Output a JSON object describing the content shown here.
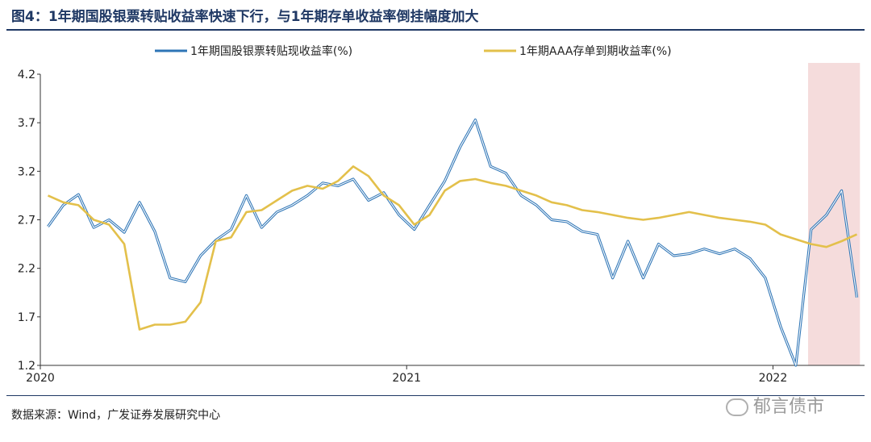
{
  "header": {
    "title": "图4：1年期国股银票转贴收益率快速下行，与1年期存单收益率倒挂幅度加大"
  },
  "footer": {
    "source": "数据来源：Wind，广发证券发展研究中心",
    "watermark": "郁言债市"
  },
  "colors": {
    "series1": "#2e75b6",
    "series2": "#e3c04b",
    "highlight": "#f5dcdc"
  },
  "chart_data": {
    "type": "line",
    "x_ticks": [
      "2020",
      "2021",
      "2022"
    ],
    "x_domain": [
      "2020-01",
      "2022-04"
    ],
    "ylim": [
      1.2,
      4.2
    ],
    "y_ticks": [
      "4.2",
      "3.7",
      "3.2",
      "2.7",
      "2.2",
      "1.7",
      "1.2"
    ],
    "legend_position": "top",
    "grid": false,
    "highlight_range": [
      "2022-02",
      "2022-04"
    ],
    "series": [
      {
        "name": "1年期国股银票转贴现收益率(%)",
        "x": [
          "2020-01",
          "2020-01",
          "2020-02",
          "2020-02",
          "2020-03",
          "2020-03",
          "2020-04",
          "2020-04",
          "2020-05",
          "2020-05",
          "2020-06",
          "2020-06",
          "2020-07",
          "2020-07",
          "2020-08",
          "2020-08",
          "2020-09",
          "2020-09",
          "2020-10",
          "2020-10",
          "2020-11",
          "2020-11",
          "2020-12",
          "2020-12",
          "2021-01",
          "2021-01",
          "2021-02",
          "2021-02",
          "2021-03",
          "2021-03",
          "2021-04",
          "2021-04",
          "2021-05",
          "2021-05",
          "2021-06",
          "2021-06",
          "2021-07",
          "2021-07",
          "2021-08",
          "2021-08",
          "2021-09",
          "2021-09",
          "2021-10",
          "2021-10",
          "2021-11",
          "2021-11",
          "2021-12",
          "2021-12",
          "2022-01",
          "2022-01",
          "2022-02",
          "2022-02",
          "2022-03",
          "2022-03"
        ],
        "values": [
          2.63,
          2.85,
          2.96,
          2.62,
          2.7,
          2.57,
          2.88,
          2.58,
          2.1,
          2.06,
          2.33,
          2.49,
          2.6,
          2.95,
          2.62,
          2.78,
          2.85,
          2.95,
          3.08,
          3.05,
          3.12,
          2.9,
          2.98,
          2.75,
          2.6,
          2.85,
          3.1,
          3.45,
          3.73,
          3.25,
          3.18,
          2.95,
          2.85,
          2.7,
          2.68,
          2.58,
          2.55,
          2.1,
          2.48,
          2.1,
          2.45,
          2.33,
          2.35,
          2.4,
          2.35,
          2.4,
          2.3,
          2.1,
          1.6,
          1.2,
          2.6,
          2.75,
          3.0,
          1.9
        ]
      },
      {
        "name": "1年期AAA存单到期收益率(%)",
        "x": [
          "2020-01",
          "2020-01",
          "2020-02",
          "2020-02",
          "2020-03",
          "2020-03",
          "2020-04",
          "2020-04",
          "2020-05",
          "2020-05",
          "2020-06",
          "2020-06",
          "2020-07",
          "2020-07",
          "2020-08",
          "2020-08",
          "2020-09",
          "2020-09",
          "2020-10",
          "2020-10",
          "2020-11",
          "2020-11",
          "2020-12",
          "2020-12",
          "2021-01",
          "2021-01",
          "2021-02",
          "2021-02",
          "2021-03",
          "2021-03",
          "2021-04",
          "2021-04",
          "2021-05",
          "2021-05",
          "2021-06",
          "2021-06",
          "2021-07",
          "2021-07",
          "2021-08",
          "2021-08",
          "2021-09",
          "2021-09",
          "2021-10",
          "2021-10",
          "2021-11",
          "2021-11",
          "2021-12",
          "2021-12",
          "2022-01",
          "2022-01",
          "2022-02",
          "2022-02",
          "2022-03",
          "2022-03"
        ],
        "values": [
          2.95,
          2.88,
          2.85,
          2.7,
          2.65,
          2.45,
          1.57,
          1.62,
          1.62,
          1.65,
          1.85,
          2.48,
          2.52,
          2.78,
          2.8,
          2.9,
          3.0,
          3.05,
          3.02,
          3.1,
          3.25,
          3.15,
          2.95,
          2.85,
          2.65,
          2.75,
          3.0,
          3.1,
          3.12,
          3.08,
          3.05,
          3.0,
          2.95,
          2.88,
          2.85,
          2.8,
          2.78,
          2.75,
          2.72,
          2.7,
          2.72,
          2.75,
          2.78,
          2.75,
          2.72,
          2.7,
          2.68,
          2.65,
          2.55,
          2.5,
          2.45,
          2.42,
          2.48,
          2.55
        ]
      }
    ]
  }
}
